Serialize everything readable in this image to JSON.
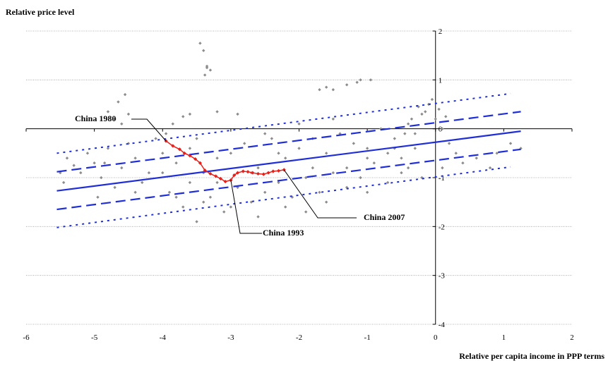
{
  "chart_data": {
    "type": "scatter",
    "ylabel": "Relative price level",
    "xlabel": "Relative per capita income in PPP terms",
    "xlim": [
      -6,
      2
    ],
    "ylim": [
      -4,
      2
    ],
    "x_ticks": [
      -6,
      -5,
      -4,
      -3,
      -2,
      -1,
      0,
      1,
      2
    ],
    "y_ticks": [
      2,
      1,
      0,
      -1,
      -2,
      -3,
      -4
    ],
    "grid": "horizontal",
    "colors": {
      "scatter": "#8c8c8c",
      "china": "#e8201a",
      "lines": "#1f2ed6"
    },
    "series": [
      {
        "type": "scatter",
        "color": "#8c8c8c",
        "points": [
          [
            -4.55,
            0.7
          ],
          [
            -4.65,
            0.55
          ],
          [
            -3.45,
            1.75
          ],
          [
            -3.4,
            1.6
          ],
          [
            -3.35,
            1.25
          ],
          [
            -3.3,
            1.2
          ],
          [
            -3.38,
            1.1
          ],
          [
            -3.35,
            1.28
          ],
          [
            -1.6,
            0.85
          ],
          [
            -1.5,
            0.8
          ],
          [
            -1.3,
            0.9
          ],
          [
            -1.15,
            0.95
          ],
          [
            -1.1,
            1.0
          ],
          [
            -0.95,
            1.0
          ],
          [
            -1.7,
            0.8
          ],
          [
            -4.8,
            0.35
          ],
          [
            -4.7,
            0.2
          ],
          [
            -4.6,
            0.1
          ],
          [
            -4.5,
            0.3
          ],
          [
            -3.7,
            0.25
          ],
          [
            -3.6,
            0.3
          ],
          [
            -3.2,
            0.35
          ],
          [
            -2.9,
            0.3
          ],
          [
            -5.4,
            -0.6
          ],
          [
            -5.3,
            -0.75
          ],
          [
            -5.2,
            -0.9
          ],
          [
            -5.1,
            -0.5
          ],
          [
            -5.0,
            -0.7
          ],
          [
            -4.9,
            -1.0
          ],
          [
            -4.8,
            -0.4
          ],
          [
            -4.7,
            -1.2
          ],
          [
            -4.6,
            -0.8
          ],
          [
            -4.5,
            -0.3
          ],
          [
            -4.4,
            -0.6
          ],
          [
            -4.3,
            -1.1
          ],
          [
            -4.2,
            -0.9
          ],
          [
            -4.1,
            -0.2
          ],
          [
            -4.0,
            -0.5
          ],
          [
            -3.9,
            -1.3
          ],
          [
            -3.8,
            -0.7
          ],
          [
            -3.7,
            -1.6
          ],
          [
            -3.6,
            -0.4
          ],
          [
            -3.5,
            -1.9
          ],
          [
            -3.4,
            -0.9
          ],
          [
            -3.3,
            -1.4
          ],
          [
            -3.2,
            -0.6
          ],
          [
            -3.1,
            -1.7
          ],
          [
            -3.0,
            -0.5
          ],
          [
            -2.9,
            -1.2
          ],
          [
            -2.8,
            -0.3
          ],
          [
            -2.7,
            -1.5
          ],
          [
            -2.6,
            -0.8
          ],
          [
            -2.5,
            -1.3
          ],
          [
            -2.4,
            -0.2
          ],
          [
            -2.3,
            -1.1
          ],
          [
            -2.2,
            -0.6
          ],
          [
            -2.1,
            -1.4
          ],
          [
            -2.0,
            -0.4
          ],
          [
            -1.9,
            -1.0
          ],
          [
            -1.8,
            -0.2
          ],
          [
            -1.7,
            -1.3
          ],
          [
            -1.6,
            -0.5
          ],
          [
            -1.5,
            -0.9
          ],
          [
            -1.4,
            -0.1
          ],
          [
            -1.3,
            -0.8
          ],
          [
            -1.2,
            -0.3
          ],
          [
            -1.1,
            -1.0
          ],
          [
            -1.0,
            -0.4
          ],
          [
            -0.9,
            -0.7
          ],
          [
            -0.8,
            0.0
          ],
          [
            -0.7,
            -0.5
          ],
          [
            -0.6,
            -0.2
          ],
          [
            -0.5,
            -0.6
          ],
          [
            -0.4,
            0.1
          ],
          [
            -0.3,
            -0.4
          ],
          [
            -0.2,
            0.3
          ],
          [
            -0.1,
            0.5
          ],
          [
            0.0,
            0.2
          ],
          [
            0.1,
            0.0
          ],
          [
            0.2,
            -0.3
          ],
          [
            -0.25,
            0.45
          ],
          [
            -0.15,
            0.35
          ],
          [
            -0.05,
            0.6
          ],
          [
            0.05,
            0.4
          ],
          [
            0.15,
            0.25
          ],
          [
            -0.35,
            0.2
          ],
          [
            -0.45,
            -0.1
          ],
          [
            0.3,
            -0.5
          ],
          [
            0.4,
            -0.7
          ],
          [
            0.6,
            -0.6
          ],
          [
            0.9,
            -0.5
          ],
          [
            1.1,
            -0.3
          ],
          [
            1.25,
            -0.4
          ],
          [
            0.8,
            -0.8
          ],
          [
            -1.0,
            -0.6
          ],
          [
            -0.6,
            -0.4
          ],
          [
            -0.3,
            -0.1
          ],
          [
            0.1,
            -0.8
          ],
          [
            -0.2,
            -1.0
          ],
          [
            -0.5,
            -0.9
          ],
          [
            -1.3,
            -1.2
          ],
          [
            -1.8,
            -0.8
          ],
          [
            -2.3,
            -0.5
          ],
          [
            -2.7,
            -0.9
          ],
          [
            -3.2,
            -1.1
          ],
          [
            -3.6,
            -1.1
          ],
          [
            -4.0,
            -0.9
          ],
          [
            -4.4,
            -1.3
          ],
          [
            -2.2,
            -1.6
          ],
          [
            -2.6,
            -1.8
          ],
          [
            -3.0,
            -1.6
          ],
          [
            -3.4,
            -1.5
          ],
          [
            -3.8,
            -1.4
          ],
          [
            -1.9,
            -1.7
          ],
          [
            -1.6,
            -1.5
          ],
          [
            -1.0,
            -1.3
          ],
          [
            -0.7,
            -1.1
          ],
          [
            -0.4,
            -0.8
          ],
          [
            -2.0,
            0.1
          ],
          [
            -1.5,
            0.2
          ],
          [
            -2.5,
            -0.1
          ],
          [
            -3.5,
            -0.2
          ],
          [
            -5.5,
            -0.9
          ],
          [
            -5.45,
            -1.1
          ],
          [
            -4.95,
            -1.4
          ],
          [
            -4.85,
            -0.7
          ],
          [
            -3.95,
            -0.1
          ],
          [
            -3.85,
            0.1
          ]
        ]
      },
      {
        "type": "line",
        "name": "China",
        "color": "#e8201a",
        "points": [
          [
            -3.95,
            -0.25
          ],
          [
            -3.85,
            -0.35
          ],
          [
            -3.75,
            -0.42
          ],
          [
            -3.68,
            -0.5
          ],
          [
            -3.6,
            -0.55
          ],
          [
            -3.52,
            -0.62
          ],
          [
            -3.45,
            -0.7
          ],
          [
            -3.38,
            -0.85
          ],
          [
            -3.3,
            -0.92
          ],
          [
            -3.22,
            -0.97
          ],
          [
            -3.15,
            -1.02
          ],
          [
            -3.08,
            -1.08
          ],
          [
            -3.0,
            -1.05
          ],
          [
            -2.95,
            -0.95
          ],
          [
            -2.9,
            -0.9
          ],
          [
            -2.82,
            -0.87
          ],
          [
            -2.75,
            -0.88
          ],
          [
            -2.68,
            -0.9
          ],
          [
            -2.6,
            -0.92
          ],
          [
            -2.52,
            -0.93
          ],
          [
            -2.45,
            -0.9
          ],
          [
            -2.38,
            -0.87
          ],
          [
            -2.3,
            -0.86
          ],
          [
            -2.22,
            -0.84
          ]
        ]
      },
      {
        "type": "line",
        "name": "fit",
        "color": "#1f2ed6",
        "dash": "solid",
        "points": [
          [
            -5.55,
            -1.27
          ],
          [
            1.25,
            -0.05
          ]
        ]
      },
      {
        "type": "line",
        "name": "upper1",
        "color": "#1f2ed6",
        "dash": "dash",
        "points": [
          [
            -5.55,
            -0.88
          ],
          [
            1.25,
            0.35
          ]
        ]
      },
      {
        "type": "line",
        "name": "lower1",
        "color": "#1f2ed6",
        "dash": "dash",
        "points": [
          [
            -5.55,
            -1.65
          ],
          [
            1.25,
            -0.42
          ]
        ]
      },
      {
        "type": "line",
        "name": "upper2",
        "color": "#1f2ed6",
        "dash": "dot",
        "points": [
          [
            -5.55,
            -0.5
          ],
          [
            1.1,
            0.72
          ]
        ]
      },
      {
        "type": "line",
        "name": "lower2",
        "color": "#1f2ed6",
        "dash": "dot",
        "points": [
          [
            -5.55,
            -2.02
          ],
          [
            1.1,
            -0.78
          ]
        ]
      }
    ],
    "annotations": [
      {
        "text": "China 1980",
        "target": [
          -3.95,
          -0.25
        ]
      },
      {
        "text": "China 1993",
        "target": [
          -3.0,
          -1.05
        ]
      },
      {
        "text": "China 2007",
        "target": [
          -2.22,
          -0.84
        ]
      }
    ]
  }
}
